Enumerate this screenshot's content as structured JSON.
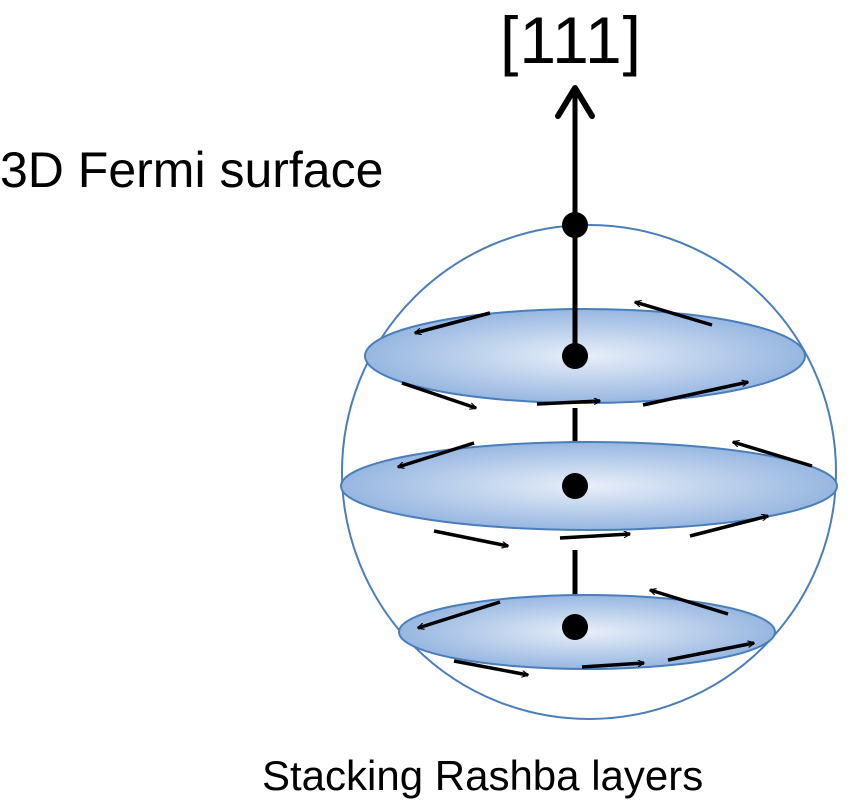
{
  "axis_label": "[111]",
  "fermi_surface_label": "3D Fermi surface",
  "stacking_label": "Stacking Rashba layers",
  "colors": {
    "sphere_stroke": "#4a7ebb",
    "layer_fill_light": "#e8eff9",
    "layer_fill_dark": "#8fb1de",
    "arrows": "#000000"
  },
  "layers": [
    {
      "name": "top-rashba-layer"
    },
    {
      "name": "middle-rashba-layer"
    },
    {
      "name": "bottom-rashba-layer"
    }
  ]
}
